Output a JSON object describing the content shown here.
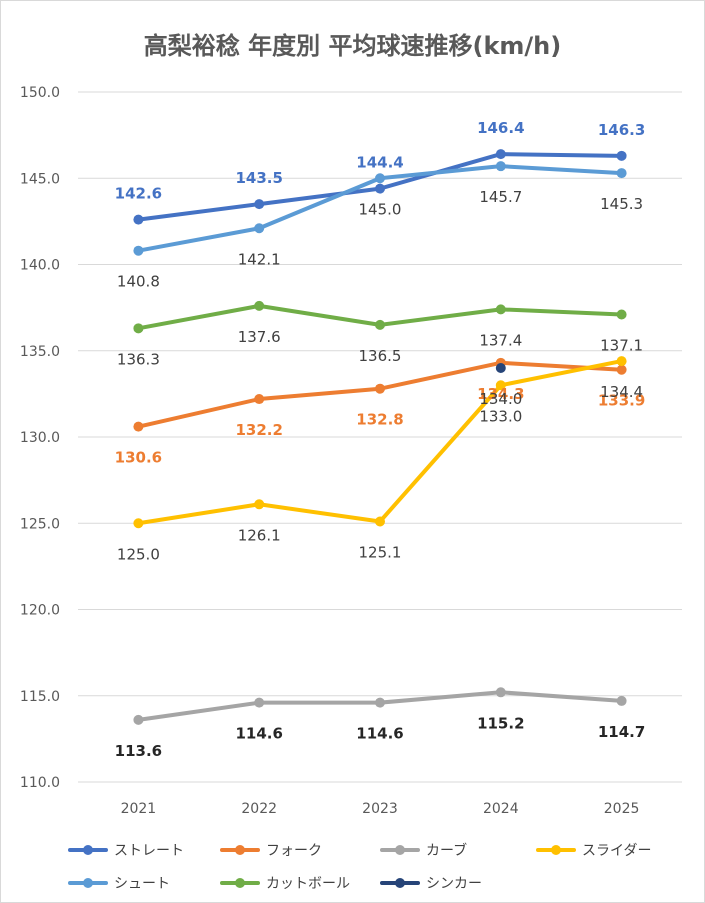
{
  "chart_data": {
    "type": "line",
    "title": "高梨裕稔 年度別 平均球速推移(km/h)",
    "categories": [
      "2021",
      "2022",
      "2023",
      "2024",
      "2025"
    ],
    "ylim": [
      110,
      150
    ],
    "yticks": [
      "110.0",
      "115.0",
      "120.0",
      "125.0",
      "130.0",
      "135.0",
      "140.0",
      "145.0",
      "150.0"
    ],
    "grid": true,
    "legend_position": "bottom",
    "series": [
      {
        "name": "ストレート",
        "color": "#4472c4",
        "values": [
          142.6,
          143.5,
          144.4,
          146.4,
          146.3
        ],
        "labels": [
          "142.6",
          "143.5",
          "144.4",
          "146.4",
          "146.3"
        ],
        "label_pos": "above",
        "label_color": "#4472c4",
        "label_bold": true
      },
      {
        "name": "フォーク",
        "color": "#ed7d31",
        "values": [
          130.6,
          132.2,
          132.8,
          134.3,
          133.9
        ],
        "labels": [
          "130.6",
          "132.2",
          "132.8",
          "134.3",
          "133.9"
        ],
        "label_pos": "below",
        "label_color": "#ed7d31",
        "label_bold": true
      },
      {
        "name": "カーブ",
        "color": "#a5a5a5",
        "values": [
          113.6,
          114.6,
          114.6,
          115.2,
          114.7
        ],
        "labels": [
          "113.6",
          "114.6",
          "114.6",
          "115.2",
          "114.7"
        ],
        "label_pos": "below",
        "label_color": "#262626",
        "label_bold": true
      },
      {
        "name": "スライダー",
        "color": "#ffc000",
        "values": [
          125.0,
          126.1,
          125.1,
          133.0,
          134.4
        ],
        "labels": [
          "125.0",
          "126.1",
          "125.1",
          "133.0",
          "134.4"
        ],
        "label_pos": "below",
        "label_color": "#404040",
        "label_bold": false
      },
      {
        "name": "シュート",
        "color": "#5b9bd5",
        "values": [
          140.8,
          142.1,
          145.0,
          145.7,
          145.3
        ],
        "labels": [
          "140.8",
          "142.1",
          "145.0",
          "145.7",
          "145.3"
        ],
        "label_pos": "below",
        "label_color": "#404040",
        "label_bold": false
      },
      {
        "name": "カットボール",
        "color": "#70ad47",
        "values": [
          136.3,
          137.6,
          136.5,
          137.4,
          137.1
        ],
        "labels": [
          "136.3",
          "137.6",
          "136.5",
          "137.4",
          "137.1"
        ],
        "label_pos": "below",
        "label_color": "#404040",
        "label_bold": false
      },
      {
        "name": "シンカー",
        "color": "#264478",
        "values": [
          null,
          null,
          null,
          134.0,
          null
        ],
        "labels": [
          "",
          "",
          "",
          "134.0",
          ""
        ],
        "label_pos": "below",
        "label_color": "#404040",
        "label_bold": false
      }
    ]
  }
}
